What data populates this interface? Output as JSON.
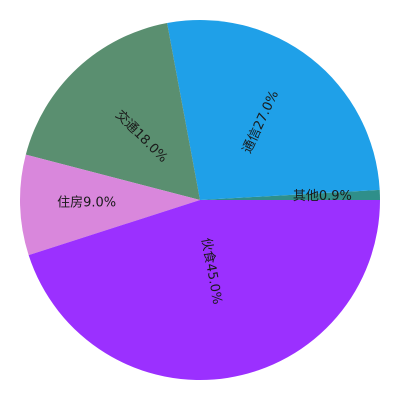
{
  "chart_data": {
    "type": "pie",
    "title": "",
    "slices": [
      {
        "label": "其他",
        "value": 0.9,
        "display": "其他0.9%",
        "color": "#2f8f8a"
      },
      {
        "label": "通信",
        "value": 27.0,
        "display": "通信27.0%",
        "color": "#1fa0e8"
      },
      {
        "label": "交通",
        "value": 18.0,
        "display": "交通18.0%",
        "color": "#5a8f70"
      },
      {
        "label": "住房",
        "value": 9.0,
        "display": "住房9.0%",
        "color": "#d987dc"
      },
      {
        "label": "伙食",
        "value": 45.0,
        "display": "伙食45.0%",
        "color": "#9b30ff"
      }
    ]
  }
}
